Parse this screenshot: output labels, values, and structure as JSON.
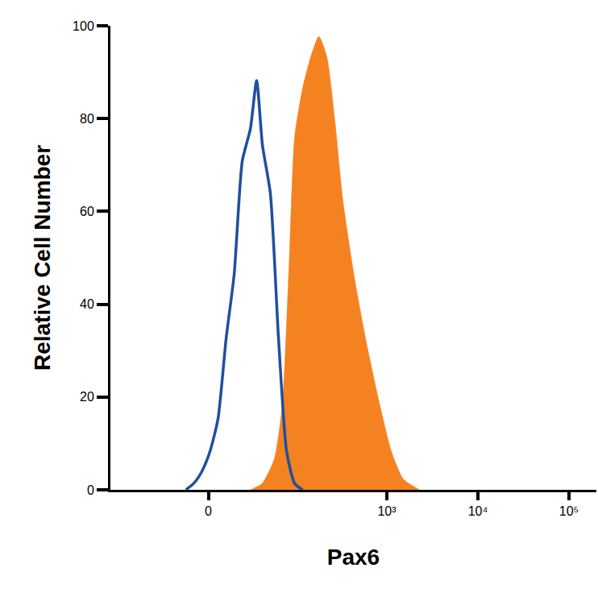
{
  "chart_data": {
    "type": "line",
    "x_label": "Pax6",
    "y_label": "Relative Cell Number",
    "log": "x",
    "grid": false,
    "xlim": [
      -130,
      200000
    ],
    "xticks": [
      0,
      {
        "value": 1000,
        "label": "10³"
      },
      {
        "value": 10000,
        "label": "10⁴"
      },
      {
        "value": 100000,
        "label": "10⁵"
      }
    ],
    "ylim": [
      0,
      100
    ],
    "yticks": [
      0,
      20,
      40,
      60,
      80,
      100
    ],
    "series": [
      {
        "type": "area",
        "color": "#f58220",
        "x": [
          28,
          40,
          56,
          70,
          83,
          96,
          118,
          146,
          179,
          219,
          269,
          330,
          449,
          609,
          827,
          1122,
          1522,
          2290
        ],
        "values": [
          0,
          1.4,
          6.6,
          18.8,
          48.3,
          76,
          86.5,
          93.4,
          97.7,
          93.4,
          79.5,
          62.2,
          44.8,
          30.9,
          18.8,
          8.3,
          2.3,
          0
        ]
      },
      {
        "type": "line",
        "color": "#1f4fa0",
        "x": [
          -13.2,
          -8.3,
          -3.6,
          0.9,
          5.4,
          10.2,
          15.4,
          21.2,
          28,
          34,
          40.3,
          50.4,
          62.9,
          77.9,
          96,
          118
        ],
        "values": [
          0,
          1.4,
          4,
          8.3,
          15.3,
          32.6,
          46.5,
          70.8,
          77.8,
          88.2,
          74.3,
          63.9,
          32.6,
          8.3,
          1.4,
          0
        ]
      }
    ]
  }
}
